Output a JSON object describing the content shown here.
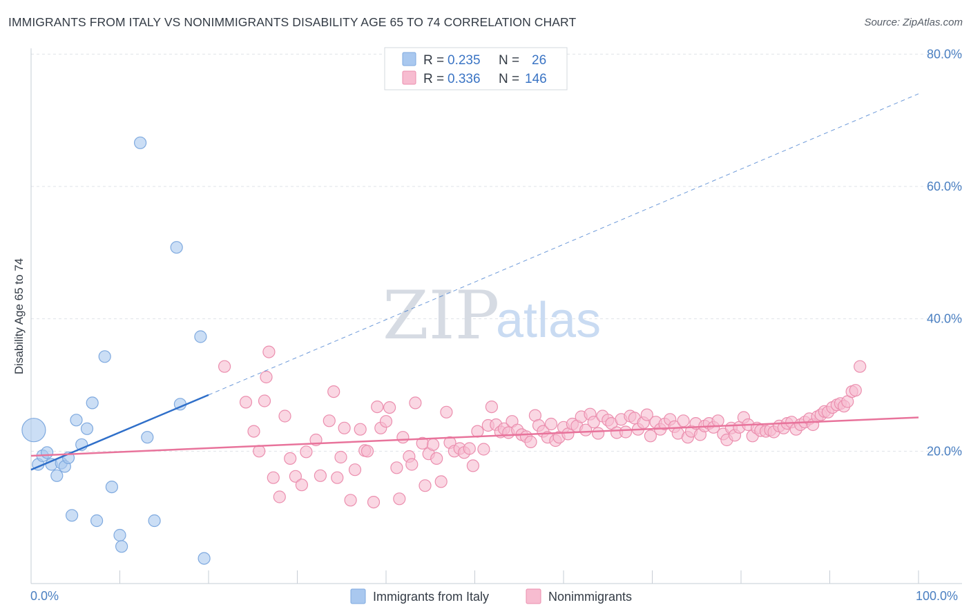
{
  "title": "IMMIGRANTS FROM ITALY VS NONIMMIGRANTS DISABILITY AGE 65 TO 74 CORRELATION CHART",
  "source": "Source: ZipAtlas.com",
  "watermark": {
    "zip": "ZIP",
    "atlas": "atlas"
  },
  "colors": {
    "blue_fill": "#a9c8ef",
    "blue_stroke": "#7ea9df",
    "blue_line": "#2f6fc9",
    "pink_fill": "#f7bcd0",
    "pink_stroke": "#eb8eae",
    "pink_line": "#e8739b",
    "grid": "#dfe3e8",
    "axis_label": "#4a7fc1"
  },
  "legend": {
    "rows": [
      {
        "r_label": "R = ",
        "r_value": "0.235",
        "n_label": "N = ",
        "n_value": "26"
      },
      {
        "r_label": "R = ",
        "r_value": "0.336",
        "n_label": "N = ",
        "n_value": "146"
      }
    ]
  },
  "bottom_legend": [
    "Immigrants from Italy",
    "Nonimmigrants"
  ],
  "chart_data": {
    "type": "scatter",
    "title": "IMMIGRANTS FROM ITALY VS NONIMMIGRANTS DISABILITY AGE 65 TO 74 CORRELATION CHART",
    "xlabel": "",
    "ylabel": "Disability Age 65 to 74",
    "xlim": [
      0,
      100
    ],
    "ylim": [
      0,
      82
    ],
    "y_ticks": [
      20,
      40,
      60,
      80
    ],
    "y_tick_labels": [
      "20.0%",
      "40.0%",
      "60.0%",
      "80.0%"
    ],
    "x_tick_labels": [
      "0.0%",
      "100.0%"
    ],
    "grid": true,
    "legend_position": "top-center",
    "series": [
      {
        "name": "Immigrants from Italy",
        "color": "#a9c8ef",
        "r": 0.235,
        "n": 26,
        "trend": {
          "x": [
            0,
            20
          ],
          "y": [
            17.2,
            28.5
          ],
          "extended_to": [
            100,
            74
          ]
        },
        "points": [
          [
            0.3,
            23.2,
            "big"
          ],
          [
            0.8,
            18.0
          ],
          [
            1.3,
            19.3
          ],
          [
            1.8,
            19.8
          ],
          [
            2.3,
            18.0
          ],
          [
            2.9,
            16.3
          ],
          [
            3.4,
            18.2
          ],
          [
            3.8,
            17.7
          ],
          [
            4.2,
            19.0
          ],
          [
            4.6,
            10.3
          ],
          [
            5.1,
            24.7
          ],
          [
            5.7,
            21.0
          ],
          [
            6.3,
            23.4
          ],
          [
            6.9,
            27.3
          ],
          [
            7.4,
            9.5
          ],
          [
            8.3,
            34.3
          ],
          [
            9.1,
            14.6
          ],
          [
            10.0,
            7.3
          ],
          [
            10.2,
            5.6
          ],
          [
            12.3,
            66.6
          ],
          [
            13.1,
            22.1
          ],
          [
            13.9,
            9.5
          ],
          [
            16.4,
            50.8
          ],
          [
            16.8,
            27.1
          ],
          [
            19.1,
            37.3
          ],
          [
            19.5,
            3.8
          ]
        ]
      },
      {
        "name": "Nonimmigrants",
        "color": "#f7bcd0",
        "r": 0.336,
        "n": 146,
        "trend": {
          "x": [
            0,
            100
          ],
          "y": [
            19.3,
            25.1
          ]
        },
        "points": [
          [
            21.8,
            32.8
          ],
          [
            24.2,
            27.4
          ],
          [
            25.1,
            23.0
          ],
          [
            25.7,
            20.0
          ],
          [
            26.3,
            27.6
          ],
          [
            26.5,
            31.2
          ],
          [
            26.8,
            35.0
          ],
          [
            27.3,
            16.0
          ],
          [
            28.0,
            13.1
          ],
          [
            28.6,
            25.3
          ],
          [
            29.2,
            18.9
          ],
          [
            29.8,
            16.2
          ],
          [
            30.5,
            14.9
          ],
          [
            31.0,
            19.9
          ],
          [
            32.1,
            21.7
          ],
          [
            32.6,
            16.3
          ],
          [
            33.6,
            24.6
          ],
          [
            34.1,
            29.0
          ],
          [
            34.5,
            16.0
          ],
          [
            34.9,
            19.1
          ],
          [
            35.3,
            23.5
          ],
          [
            36.0,
            12.6
          ],
          [
            36.5,
            17.2
          ],
          [
            37.1,
            23.3
          ],
          [
            37.6,
            20.1
          ],
          [
            37.9,
            20.0
          ],
          [
            38.6,
            12.3
          ],
          [
            39.0,
            26.7
          ],
          [
            39.4,
            23.5
          ],
          [
            40.0,
            24.5
          ],
          [
            40.4,
            26.6
          ],
          [
            41.2,
            17.5
          ],
          [
            41.5,
            12.8
          ],
          [
            41.9,
            22.1
          ],
          [
            42.6,
            19.2
          ],
          [
            42.9,
            18.0
          ],
          [
            43.3,
            27.3
          ],
          [
            44.1,
            21.2
          ],
          [
            44.4,
            14.8
          ],
          [
            44.8,
            19.6
          ],
          [
            45.3,
            21.0
          ],
          [
            45.7,
            18.9
          ],
          [
            46.2,
            15.4
          ],
          [
            46.8,
            25.9
          ],
          [
            47.2,
            21.3
          ],
          [
            47.7,
            20.0
          ],
          [
            48.3,
            20.4
          ],
          [
            48.8,
            19.8
          ],
          [
            49.4,
            20.4
          ],
          [
            49.8,
            17.8
          ],
          [
            50.3,
            23.0
          ],
          [
            51.0,
            20.3
          ],
          [
            51.5,
            23.9
          ],
          [
            51.9,
            26.7
          ],
          [
            52.4,
            24.0
          ],
          [
            52.9,
            22.9
          ],
          [
            53.3,
            23.4
          ],
          [
            53.8,
            22.8
          ],
          [
            54.2,
            24.5
          ],
          [
            54.8,
            23.2
          ],
          [
            55.3,
            22.5
          ],
          [
            55.8,
            22.2
          ],
          [
            56.3,
            21.4
          ],
          [
            56.8,
            25.4
          ],
          [
            57.2,
            23.9
          ],
          [
            57.7,
            23.0
          ],
          [
            58.2,
            22.1
          ],
          [
            58.6,
            24.1
          ],
          [
            59.1,
            21.6
          ],
          [
            59.5,
            22.1
          ],
          [
            60.0,
            23.6
          ],
          [
            60.5,
            22.6
          ],
          [
            61.0,
            24.1
          ],
          [
            61.5,
            23.8
          ],
          [
            62.0,
            25.2
          ],
          [
            62.5,
            23.2
          ],
          [
            63.0,
            25.6
          ],
          [
            63.4,
            24.4
          ],
          [
            63.9,
            22.7
          ],
          [
            64.4,
            25.3
          ],
          [
            65.0,
            24.7
          ],
          [
            65.4,
            24.2
          ],
          [
            66.0,
            22.8
          ],
          [
            66.5,
            24.8
          ],
          [
            67.0,
            22.9
          ],
          [
            67.5,
            25.3
          ],
          [
            68.0,
            25.0
          ],
          [
            68.4,
            23.3
          ],
          [
            69.0,
            24.3
          ],
          [
            69.4,
            25.5
          ],
          [
            69.8,
            22.3
          ],
          [
            70.4,
            24.4
          ],
          [
            70.9,
            23.3
          ],
          [
            71.4,
            24.1
          ],
          [
            72.0,
            24.8
          ],
          [
            72.5,
            23.7
          ],
          [
            72.9,
            22.7
          ],
          [
            73.5,
            24.6
          ],
          [
            74.0,
            22.1
          ],
          [
            74.4,
            23.0
          ],
          [
            74.9,
            24.2
          ],
          [
            75.4,
            22.5
          ],
          [
            75.9,
            23.8
          ],
          [
            76.4,
            24.2
          ],
          [
            76.9,
            23.6
          ],
          [
            77.4,
            24.6
          ],
          [
            78.0,
            22.6
          ],
          [
            78.4,
            21.7
          ],
          [
            78.9,
            23.5
          ],
          [
            79.3,
            22.4
          ],
          [
            79.8,
            23.6
          ],
          [
            80.3,
            25.1
          ],
          [
            80.8,
            24.0
          ],
          [
            81.3,
            22.3
          ],
          [
            81.8,
            23.5
          ],
          [
            82.2,
            23.1
          ],
          [
            82.8,
            23.0
          ],
          [
            83.3,
            23.2
          ],
          [
            83.7,
            22.9
          ],
          [
            84.3,
            23.8
          ],
          [
            84.8,
            23.5
          ],
          [
            85.2,
            24.2
          ],
          [
            85.7,
            24.4
          ],
          [
            86.2,
            23.3
          ],
          [
            86.7,
            24.0
          ],
          [
            87.2,
            24.4
          ],
          [
            87.7,
            24.9
          ],
          [
            88.1,
            24.0
          ],
          [
            88.6,
            25.2
          ],
          [
            89.0,
            25.5
          ],
          [
            89.4,
            26.0
          ],
          [
            89.8,
            25.9
          ],
          [
            90.3,
            26.6
          ],
          [
            90.8,
            27.0
          ],
          [
            91.2,
            27.2
          ],
          [
            91.6,
            26.8
          ],
          [
            92.0,
            27.5
          ],
          [
            92.5,
            29.0
          ],
          [
            92.9,
            29.2
          ],
          [
            93.4,
            32.8
          ]
        ]
      }
    ]
  }
}
